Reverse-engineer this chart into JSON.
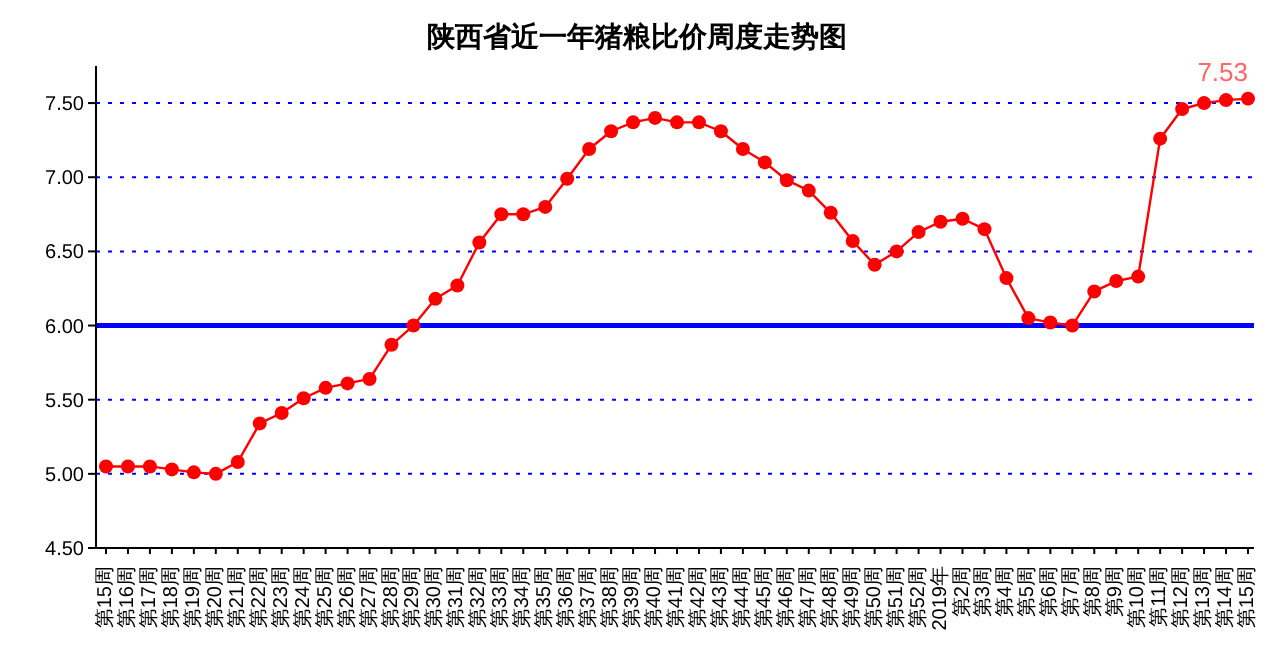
{
  "chart_data": {
    "type": "line",
    "title": "陕西省近一年猪粮比价周度走势图",
    "categories": [
      "第15周",
      "第16周",
      "第17周",
      "第18周",
      "第19周",
      "第20周",
      "第21周",
      "第22周",
      "第23周",
      "第24周",
      "第25周",
      "第26周",
      "第27周",
      "第28周",
      "第29周",
      "第30周",
      "第31周",
      "第32周",
      "第33周",
      "第34周",
      "第35周",
      "第36周",
      "第37周",
      "第38周",
      "第39周",
      "第40周",
      "第41周",
      "第42周",
      "第43周",
      "第44周",
      "第45周",
      "第46周",
      "第47周",
      "第48周",
      "第49周",
      "第50周",
      "第51周",
      "第52周",
      "2019年",
      "第2周",
      "第3周",
      "第4周",
      "第5周",
      "第6周",
      "第7周",
      "第8周",
      "第9周",
      "第10周",
      "第11周",
      "第12周",
      "第13周",
      "第14周",
      "第15周"
    ],
    "series": [
      {
        "color": "#ff0000",
        "values": [
          5.05,
          5.05,
          5.05,
          5.03,
          5.01,
          5.0,
          5.08,
          5.34,
          5.41,
          5.51,
          5.58,
          5.61,
          5.64,
          5.87,
          6.0,
          6.18,
          6.27,
          6.56,
          6.75,
          6.75,
          6.8,
          6.99,
          7.19,
          7.31,
          7.37,
          7.4,
          7.37,
          7.37,
          7.31,
          7.19,
          7.1,
          6.98,
          6.91,
          6.76,
          6.57,
          6.41,
          6.5,
          6.63,
          6.7,
          6.72,
          6.65,
          6.32,
          6.05,
          6.02,
          6.0,
          6.23,
          6.3,
          6.33,
          7.26,
          7.46,
          7.5,
          7.52,
          7.53
        ],
        "value_labels": [
          null,
          null,
          null,
          null,
          null,
          null,
          null,
          null,
          null,
          null,
          null,
          null,
          null,
          null,
          null,
          null,
          null,
          null,
          null,
          null,
          null,
          null,
          null,
          null,
          null,
          null,
          null,
          null,
          null,
          null,
          null,
          null,
          null,
          null,
          null,
          null,
          null,
          null,
          null,
          null,
          null,
          null,
          null,
          null,
          null,
          null,
          null,
          null,
          null,
          null,
          null,
          null,
          "7.53"
        ]
      }
    ],
    "ylim": [
      4.5,
      7.75
    ],
    "yticks": [
      {
        "value": 4.5,
        "label": "4.50"
      },
      {
        "value": 5,
        "label": "5.00"
      },
      {
        "value": 5.5,
        "label": "5.50"
      },
      {
        "value": 6,
        "label": "6.00"
      },
      {
        "value": 6.5,
        "label": "6.50"
      },
      {
        "value": 7,
        "label": "7.00"
      },
      {
        "value": 7.5,
        "label": "7.50"
      }
    ],
    "ref_lines": [
      {
        "axis": "y",
        "value": 6,
        "color": "#0000ff"
      }
    ],
    "grid": "y",
    "marker": "circle",
    "legend": false
  }
}
